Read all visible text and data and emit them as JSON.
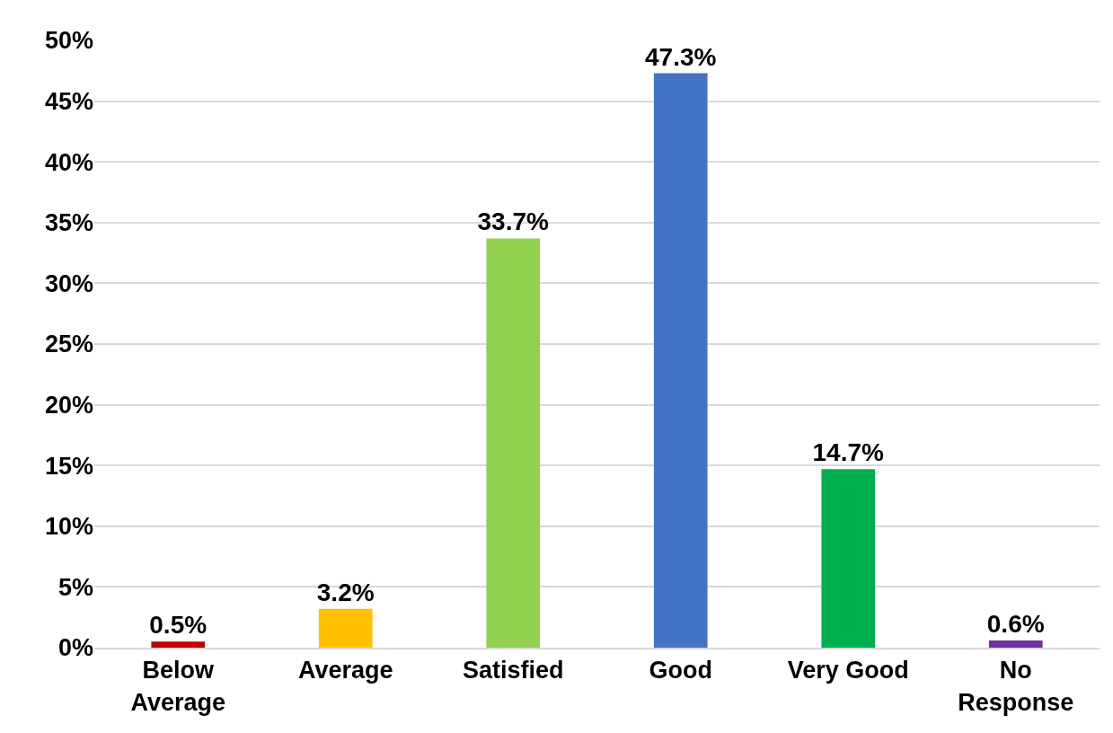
{
  "chart_data": {
    "type": "bar",
    "categories": [
      "Below Average",
      "Average",
      "Satisfied",
      "Good",
      "Very Good",
      "No Response"
    ],
    "values": [
      0.5,
      3.2,
      33.7,
      47.3,
      14.7,
      0.6
    ],
    "colors": [
      "#c00000",
      "#ffc000",
      "#92d050",
      "#4472c4",
      "#00b050",
      "#7030a0"
    ],
    "value_labels": [
      "0.5%",
      "3.2%",
      "33.7%",
      "47.3%",
      "14.7%",
      "0.6%"
    ],
    "ylim": [
      0,
      50
    ],
    "yticks": [
      {
        "value": 0,
        "label": "0%"
      },
      {
        "value": 5,
        "label": "5%"
      },
      {
        "value": 10,
        "label": "10%"
      },
      {
        "value": 15,
        "label": "15%"
      },
      {
        "value": 20,
        "label": "20%"
      },
      {
        "value": 25,
        "label": "25%"
      },
      {
        "value": 30,
        "label": "30%"
      },
      {
        "value": 35,
        "label": "35%"
      },
      {
        "value": 40,
        "label": "40%"
      },
      {
        "value": 45,
        "label": "45%"
      },
      {
        "value": 50,
        "label": "50%"
      }
    ],
    "grid": "y"
  }
}
